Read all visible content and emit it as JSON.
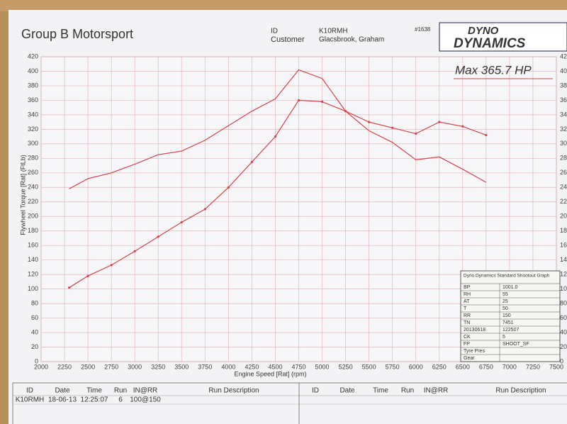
{
  "header": {
    "company": "Group B Motorsport",
    "id_label": "ID",
    "id": "K10RMH",
    "customer_label": "Customer",
    "customer": "Glacsbrook, Graham",
    "sheet_no": "#1638",
    "logo_top": "DYNO",
    "logo_bottom": "DYNAMICS"
  },
  "chart_data": {
    "type": "line",
    "annotation": "Max 365.7 HP",
    "xlabel": "Engine Speed [Rat] (rpm)",
    "ylabel": "Flywheel Torque [Rat] (FtLb)",
    "x": [
      2300,
      2500,
      2750,
      3000,
      3250,
      3500,
      3750,
      4000,
      4250,
      4500,
      4750,
      5000,
      5250,
      5500,
      5750,
      6000,
      6250,
      6500,
      6750
    ],
    "series": [
      {
        "color": "#d9434a",
        "values": [
          238,
          252,
          260,
          272,
          285,
          290,
          305,
          325,
          345,
          362,
          402,
          390,
          345,
          318,
          302,
          278,
          282,
          265,
          247
        ]
      },
      {
        "color": "#d9434a",
        "markers": true,
        "values": [
          102,
          118,
          133,
          152,
          172,
          192,
          210,
          240,
          275,
          310,
          360,
          358,
          345,
          330,
          322,
          314,
          330,
          324,
          312
        ]
      }
    ],
    "xlim": [
      2000,
      7500
    ],
    "ylim": [
      0,
      420
    ],
    "xticks": [
      2000,
      2250,
      2500,
      2750,
      3000,
      3250,
      3500,
      3750,
      4000,
      4250,
      4500,
      4750,
      5000,
      5250,
      5500,
      5750,
      6000,
      6250,
      6500,
      6750,
      7000,
      7250,
      7500
    ],
    "yticks": [
      0,
      20,
      40,
      60,
      80,
      100,
      120,
      140,
      160,
      180,
      200,
      220,
      240,
      260,
      280,
      300,
      320,
      340,
      360,
      380,
      400,
      420
    ],
    "grid": true
  },
  "info_box": {
    "title": "Dyno Dynamics Standard Shootout Graph",
    "rows": [
      [
        "BP",
        "1001.0"
      ],
      [
        "RH",
        "55"
      ],
      [
        "AT",
        "25"
      ],
      [
        "T",
        "50"
      ],
      [
        "RR",
        "150"
      ],
      [
        "TN",
        "7451"
      ],
      [
        "20130618",
        "122507"
      ],
      [
        "CK",
        "5"
      ],
      [
        "FP",
        "SHOOT_SF"
      ],
      [
        "Tyre Pres"
      ],
      [
        "Gear"
      ]
    ]
  },
  "table": {
    "headers": [
      "ID",
      "Date",
      "Time",
      "Run",
      "IN@RR",
      "Run Description",
      "ID",
      "Date",
      "Time",
      "Run",
      "IN@RR",
      "Run Description"
    ],
    "rows": [
      [
        "K10RMH",
        "18-06-13",
        "12:25:07",
        "6",
        "100@150"
      ]
    ]
  }
}
